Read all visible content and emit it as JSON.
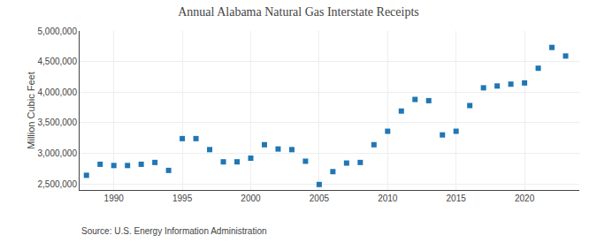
{
  "chart_data": {
    "type": "scatter",
    "title": "Annual Alabama Natural Gas Interstate Receipts",
    "ylabel": "Million Cubic Feet",
    "annotations": [
      "Source: U.S. Energy Information Administration"
    ],
    "x": [
      1988,
      1989,
      1990,
      1991,
      1992,
      1993,
      1994,
      1995,
      1996,
      1997,
      1998,
      1999,
      2000,
      2001,
      2002,
      2003,
      2004,
      2005,
      2006,
      2007,
      2008,
      2009,
      2010,
      2011,
      2012,
      2013,
      2014,
      2015,
      2016,
      2017,
      2018,
      2019,
      2020,
      2021,
      2022,
      2023
    ],
    "values": [
      2640000,
      2820000,
      2800000,
      2800000,
      2820000,
      2850000,
      2720000,
      3240000,
      3240000,
      3060000,
      2860000,
      2860000,
      2920000,
      3140000,
      3070000,
      3060000,
      2870000,
      2490000,
      2700000,
      2840000,
      2850000,
      3140000,
      3360000,
      3690000,
      3880000,
      3860000,
      3300000,
      3360000,
      3780000,
      4070000,
      4100000,
      4130000,
      4150000,
      4390000,
      4730000,
      4590000
    ],
    "marker": "square",
    "xlim": [
      1987.5,
      2024
    ],
    "ylim": [
      2400000,
      5000000
    ],
    "xticks": [
      1990,
      1995,
      2000,
      2005,
      2010,
      2015,
      2020
    ],
    "yticks": [
      {
        "value": 2500000,
        "label": "2,500,000"
      },
      {
        "value": 3000000,
        "label": "3,000,000"
      },
      {
        "value": 3500000,
        "label": "3,500,000"
      },
      {
        "value": 4000000,
        "label": "4,000,000"
      },
      {
        "value": 4500000,
        "label": "4,500,000"
      },
      {
        "value": 5000000,
        "label": "5,000,000"
      }
    ],
    "grid": true
  }
}
